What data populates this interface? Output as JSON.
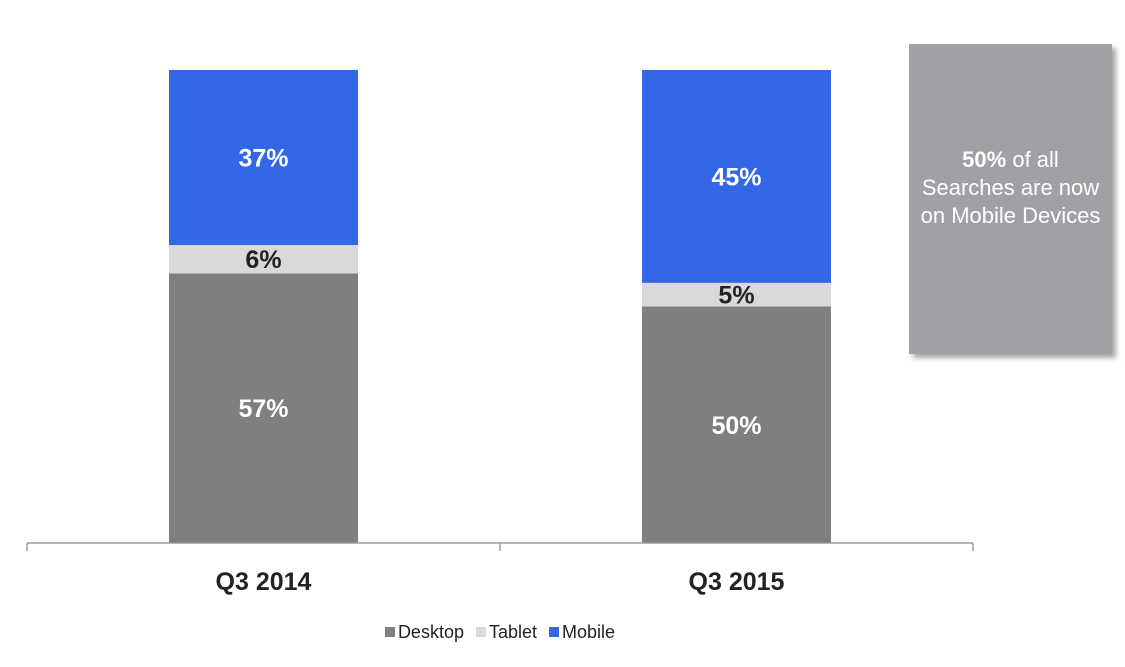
{
  "chart_data": {
    "type": "bar",
    "stacked": true,
    "percent": true,
    "categories": [
      "Q3 2014",
      "Q3 2015"
    ],
    "series": [
      {
        "name": "Desktop",
        "values": [
          57,
          50
        ],
        "labels": [
          "57%",
          "50%"
        ],
        "color": "#7f7f7f",
        "label_color": "#ffffff"
      },
      {
        "name": "Tablet",
        "values": [
          6,
          5
        ],
        "labels": [
          "6%",
          "5%"
        ],
        "color": "#d9d9d9",
        "label_color": "#222222"
      },
      {
        "name": "Mobile",
        "values": [
          37,
          45
        ],
        "labels": [
          "37%",
          "45%"
        ],
        "color": "#3267e6",
        "label_color": "#ffffff"
      }
    ],
    "ylim": [
      0,
      100
    ],
    "grid": false,
    "legend_position": "bottom"
  },
  "callout": {
    "highlight": "50%",
    "text": " of all Searches are now on Mobile Devices"
  }
}
